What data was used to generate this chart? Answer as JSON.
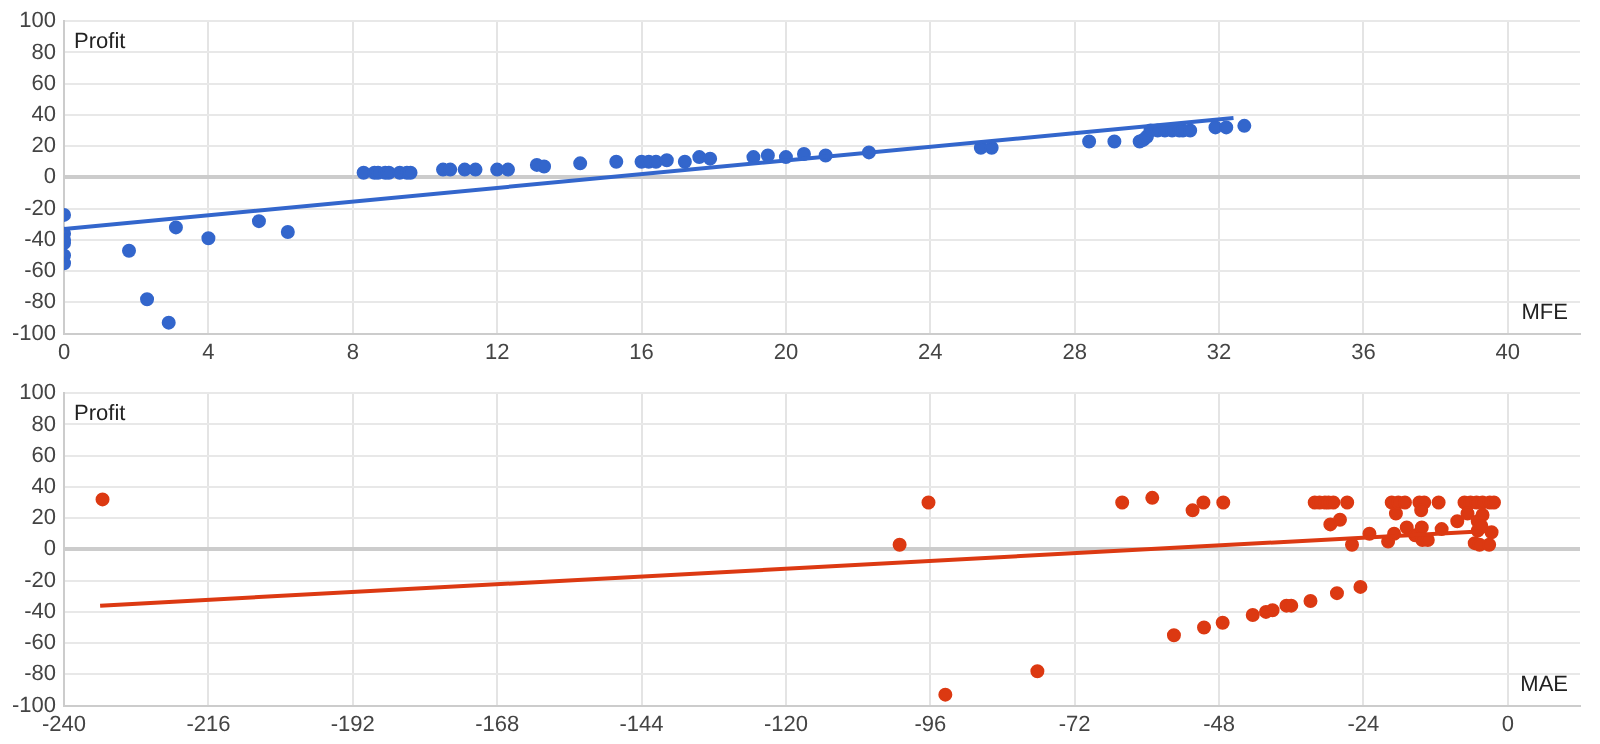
{
  "chart_data": [
    {
      "type": "scatter",
      "xlabel": "MFE",
      "ylabel": "Profit",
      "xlim": [
        0,
        42
      ],
      "xticks": [
        0,
        4,
        8,
        12,
        16,
        20,
        24,
        28,
        32,
        36,
        40
      ],
      "ylim": [
        -100,
        100
      ],
      "yticks": [
        -100,
        -80,
        -60,
        -40,
        -20,
        0,
        20,
        40,
        60,
        80,
        100
      ],
      "grid": true,
      "legend": false,
      "series": [
        {
          "type": "scatter",
          "marker": "circle",
          "color": "#3366cc",
          "x": [
            0,
            0,
            0,
            0,
            0,
            0,
            1.8,
            2.3,
            2.9,
            3.1,
            4,
            5.4,
            6.2,
            8.3,
            8.6,
            8.7,
            8.9,
            9.0,
            9.3,
            9.5,
            9.6,
            10.5,
            10.7,
            11.1,
            11.4,
            12.0,
            12.3,
            13.1,
            13.3,
            14.3,
            15.3,
            16.0,
            16.2,
            16.4,
            16.7,
            17.2,
            17.6,
            17.9,
            19.1,
            19.5,
            20.0,
            20.5,
            21.1,
            22.3,
            25.4,
            25.7,
            28.4,
            29.1,
            29.8,
            29.9,
            30.0,
            30.1,
            30.3,
            30.5,
            30.7,
            30.9,
            31.0,
            31.2,
            31.9,
            32.2,
            32.7
          ],
          "values": [
            -24,
            -36,
            -40,
            -42,
            -50,
            -55,
            -47,
            -78,
            -93,
            -32,
            -39,
            -28,
            -35,
            3,
            3,
            3,
            3,
            3,
            3,
            3,
            3,
            5,
            5,
            5,
            5,
            5,
            5,
            8,
            7,
            9,
            10,
            10,
            10,
            10,
            11,
            10,
            13,
            12,
            13,
            14,
            13,
            15,
            14,
            16,
            19,
            19,
            23,
            23,
            23,
            24,
            26,
            30,
            30,
            30,
            30,
            30,
            30,
            30,
            32,
            32,
            33
          ]
        },
        {
          "type": "line",
          "marker": "none",
          "color": "#3366cc",
          "x": [
            0,
            32.4
          ],
          "values": [
            -33,
            38
          ]
        }
      ]
    },
    {
      "type": "scatter",
      "xlabel": "MAE",
      "ylabel": "Profit",
      "xlim": [
        -240,
        12
      ],
      "xticks": [
        -240,
        -216,
        -192,
        -168,
        -144,
        -120,
        -96,
        -72,
        -48,
        -24,
        0
      ],
      "ylim": [
        -100,
        100
      ],
      "yticks": [
        -100,
        -80,
        -60,
        -40,
        -20,
        0,
        20,
        40,
        60,
        80,
        100
      ],
      "grid": true,
      "legend": false,
      "series": [
        {
          "type": "scatter",
          "marker": "circle",
          "color": "#dc3912",
          "x": [
            -233.6,
            -101.1,
            -96.3,
            -93.5,
            -78.2,
            -64.1,
            -59.1,
            -55.5,
            -52.4,
            -50.6,
            -50.5,
            -47.3,
            -47.4,
            -42.4,
            -40.2,
            -39.1,
            -36.8,
            -36.0,
            -32.8,
            -28.4,
            -24.5,
            -32.1,
            -31.3,
            -30.4,
            -29.8,
            -29.0,
            -26.7,
            -29.5,
            -27.9,
            -25.9,
            -23.0,
            -19.9,
            -18.9,
            -18.6,
            -19.3,
            -18.2,
            -17.1,
            -16.8,
            -15.4,
            -14.7,
            -13.9,
            -14.4,
            -14.3,
            -14.2,
            -13.3,
            -11.0,
            -11.5,
            -8.4,
            -7.2,
            -6.2,
            -5.2,
            -4.2,
            -3.0,
            -2.3,
            -6.7,
            -5.0,
            -4.2,
            -5.5,
            -4.7,
            -3.1,
            -5.0,
            -2.7,
            -4.4
          ],
          "values": [
            32,
            3,
            30,
            -93,
            -78,
            30,
            33,
            -55,
            25,
            30,
            -50,
            30,
            -47,
            -42,
            -40,
            -39,
            -36,
            -36,
            -33,
            -28,
            -24,
            30,
            30,
            30,
            30,
            30,
            30,
            16,
            19,
            3,
            10,
            5,
            10,
            23,
            30,
            30,
            30,
            14,
            9,
            30,
            30,
            25,
            14,
            6,
            6,
            13,
            30,
            18,
            30,
            30,
            30,
            30,
            30,
            30,
            23,
            18,
            22,
            4,
            3,
            3,
            12,
            11,
            15
          ]
        },
        {
          "type": "line",
          "marker": "none",
          "color": "#dc3912",
          "x": [
            -234,
            -2.5
          ],
          "values": [
            -36,
            12
          ]
        }
      ]
    }
  ]
}
